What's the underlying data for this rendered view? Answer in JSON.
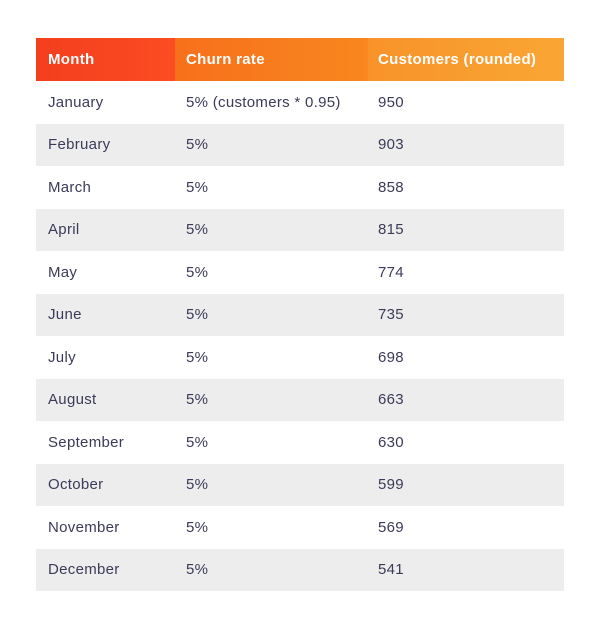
{
  "table": {
    "header": {
      "month": "Month",
      "churn": "Churn rate",
      "customers": "Customers (rounded)"
    },
    "rows": [
      {
        "month": "January",
        "churn": "5% (customers * 0.95)",
        "customers": "950"
      },
      {
        "month": "February",
        "churn": "5%",
        "customers": "903"
      },
      {
        "month": "March",
        "churn": "5%",
        "customers": "858"
      },
      {
        "month": "April",
        "churn": "5%",
        "customers": "815"
      },
      {
        "month": "May",
        "churn": "5%",
        "customers": "774"
      },
      {
        "month": "June",
        "churn": "5%",
        "customers": "735"
      },
      {
        "month": "July",
        "churn": "5%",
        "customers": "698"
      },
      {
        "month": "August",
        "churn": "5%",
        "customers": "663"
      },
      {
        "month": "September",
        "churn": "5%",
        "customers": "630"
      },
      {
        "month": "October",
        "churn": "5%",
        "customers": "599"
      },
      {
        "month": "November",
        "churn": "5%",
        "customers": "569"
      },
      {
        "month": "December",
        "churn": "5%",
        "customers": "541"
      }
    ]
  },
  "chart_data": {
    "type": "table",
    "title": "",
    "columns": [
      "Month",
      "Churn rate",
      "Customers (rounded)"
    ],
    "categories": [
      "January",
      "February",
      "March",
      "April",
      "May",
      "June",
      "July",
      "August",
      "September",
      "October",
      "November",
      "December"
    ],
    "series": [
      {
        "name": "Churn rate",
        "values": [
          "5% (customers * 0.95)",
          "5%",
          "5%",
          "5%",
          "5%",
          "5%",
          "5%",
          "5%",
          "5%",
          "5%",
          "5%",
          "5%"
        ]
      },
      {
        "name": "Customers (rounded)",
        "values": [
          950,
          903,
          858,
          815,
          774,
          735,
          698,
          663,
          630,
          599,
          569,
          541
        ]
      }
    ]
  },
  "colors": {
    "header_month_bg1": "#f43f1e",
    "header_month_bg2": "#fb4c22",
    "header_churn_bg1": "#f7701b",
    "header_churn_bg2": "#f8871f",
    "header_customers_bg1": "#f8932a",
    "header_customers_bg2": "#f9a634",
    "header_text": "#ffffff",
    "stripe_bg": "#ededed",
    "text": "#3b3b59"
  }
}
